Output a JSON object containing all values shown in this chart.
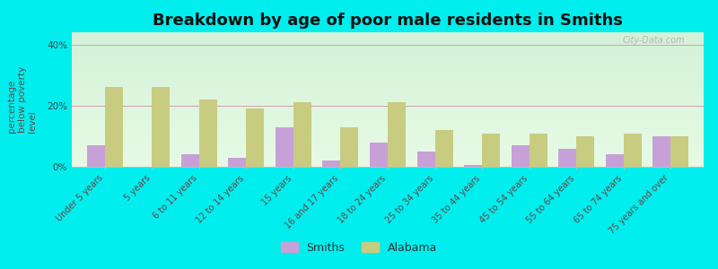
{
  "title": "Breakdown by age of poor male residents in Smiths",
  "ylabel": "percentage\nbelow poverty\nlevel",
  "categories": [
    "Under 5 years",
    "5 years",
    "6 to 11 years",
    "12 to 14 years",
    "15 years",
    "16 and 17 years",
    "18 to 24 years",
    "25 to 34 years",
    "35 to 44 years",
    "45 to 54 years",
    "55 to 64 years",
    "65 to 74 years",
    "75 years and over"
  ],
  "smiths_values": [
    7,
    0,
    4,
    3,
    13,
    2,
    8,
    5,
    0.5,
    7,
    6,
    4,
    10
  ],
  "alabama_values": [
    26,
    26,
    22,
    19,
    21,
    13,
    21,
    12,
    11,
    11,
    10,
    11,
    10
  ],
  "smiths_color": "#c8a0d8",
  "alabama_color": "#c8cc80",
  "bar_width": 0.38,
  "ylim": [
    0,
    44
  ],
  "yticks": [
    0,
    20,
    40
  ],
  "ytick_labels": [
    "0%",
    "20%",
    "40%"
  ],
  "bg_color_top": "#f0fff0",
  "bg_color_bottom": "#e0f5e0",
  "outer_bg": "#00eeee",
  "title_fontsize": 13,
  "axis_fontsize": 7.5,
  "label_fontsize": 7,
  "legend_fontsize": 9,
  "watermark": "City-Data.com"
}
